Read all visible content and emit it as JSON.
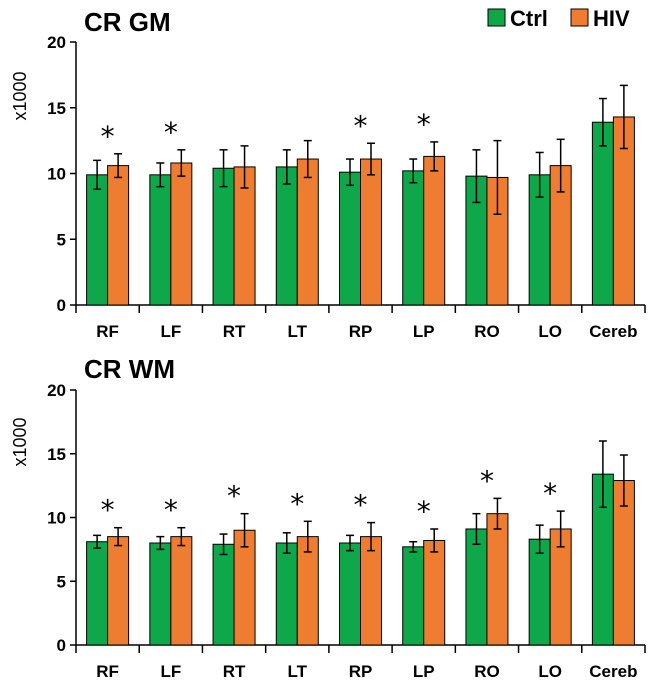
{
  "legend": [
    {
      "label": "Ctrl",
      "color": "#0ea84a"
    },
    {
      "label": "HIV",
      "color": "#ee7d31"
    }
  ],
  "chart_data": [
    {
      "type": "bar",
      "title": "CR GM",
      "ylabel": "x1000",
      "xlabel": "",
      "ylim": [
        0,
        20
      ],
      "yticks": [
        "0",
        "5",
        "10",
        "15",
        "20"
      ],
      "categories": [
        "RF",
        "LF",
        "RT",
        "LT",
        "RP",
        "LP",
        "RO",
        "LO",
        "Cereb"
      ],
      "series": [
        {
          "name": "Ctrl",
          "values": [
            9.9,
            9.9,
            10.4,
            10.5,
            10.1,
            10.2,
            9.8,
            9.9,
            13.9
          ],
          "errors": [
            1.1,
            0.9,
            1.4,
            1.3,
            1.0,
            0.9,
            2.0,
            1.7,
            1.8
          ]
        },
        {
          "name": "HIV",
          "values": [
            10.6,
            10.8,
            10.5,
            11.1,
            11.1,
            11.3,
            9.7,
            10.6,
            14.3
          ],
          "errors": [
            0.9,
            1.0,
            1.6,
            1.4,
            1.2,
            1.1,
            2.8,
            2.0,
            2.4
          ]
        }
      ],
      "annotations": [
        "*",
        "*",
        "",
        "",
        "*",
        "*",
        "",
        "",
        ""
      ]
    },
    {
      "type": "bar",
      "title": "CR WM",
      "ylabel": "x1000",
      "xlabel": "",
      "ylim": [
        0,
        20
      ],
      "yticks": [
        "0",
        "5",
        "10",
        "15",
        "20"
      ],
      "categories": [
        "RF",
        "LF",
        "RT",
        "LT",
        "RP",
        "LP",
        "RO",
        "LO",
        "Cereb"
      ],
      "series": [
        {
          "name": "Ctrl",
          "values": [
            8.1,
            8.0,
            7.9,
            8.0,
            8.0,
            7.7,
            9.1,
            8.3,
            13.4
          ],
          "errors": [
            0.5,
            0.5,
            0.8,
            0.8,
            0.6,
            0.4,
            1.2,
            1.1,
            2.6
          ]
        },
        {
          "name": "HIV",
          "values": [
            8.5,
            8.5,
            9.0,
            8.5,
            8.5,
            8.2,
            10.3,
            9.1,
            12.9
          ],
          "errors": [
            0.7,
            0.7,
            1.3,
            1.2,
            1.1,
            0.9,
            1.2,
            1.4,
            2.0
          ]
        }
      ],
      "annotations": [
        "*",
        "*",
        "*",
        "*",
        "*",
        "*",
        "*",
        "*",
        ""
      ]
    }
  ]
}
